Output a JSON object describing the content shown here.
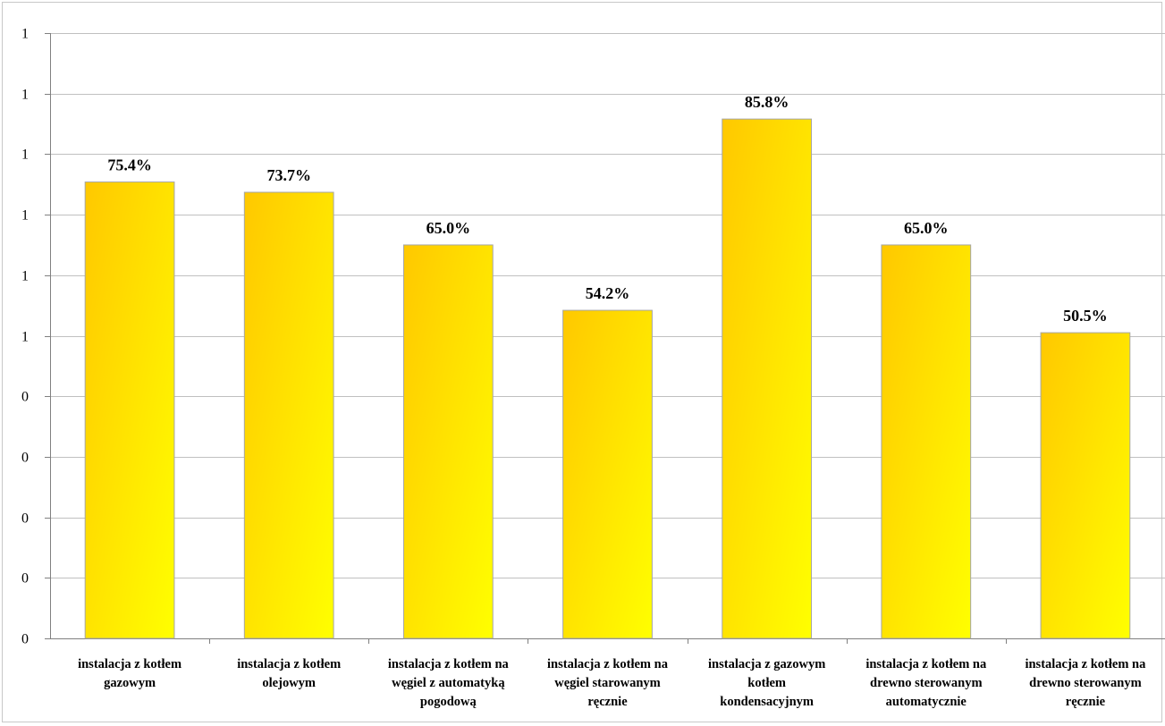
{
  "chart_data": {
    "type": "bar",
    "title": "",
    "xlabel": "",
    "ylabel": "",
    "categories": [
      [
        "instalacja z kotłem",
        "gazowym"
      ],
      [
        "instalacja z kotłem",
        "olejowym"
      ],
      [
        "instalacja z kotłem na",
        "węgiel z automatyką",
        "pogodową"
      ],
      [
        "instalacja z kotłem na",
        "węgiel starowanym",
        "ręcznie"
      ],
      [
        "instalacja z gazowym",
        "kotłem",
        "kondensacyjnym"
      ],
      [
        "instalacja z kotłem na",
        "drewno sterowanym",
        "automatycznie"
      ],
      [
        "instalacja z kotłem na",
        "drewno sterowanym",
        "ręcznie"
      ]
    ],
    "values": [
      0.754,
      0.737,
      0.65,
      0.542,
      0.858,
      0.65,
      0.505
    ],
    "data_labels": [
      "75.4%",
      "73.7%",
      "65.0%",
      "54.2%",
      "85.8%",
      "65.0%",
      "50.5%"
    ],
    "ylim": [
      0,
      1.0
    ],
    "y_ticks": [
      0,
      0.1,
      0.2,
      0.3,
      0.4,
      0.5,
      0.6,
      0.7,
      0.8,
      0.9,
      1.0
    ],
    "y_tick_labels": [
      "0",
      "0",
      "0",
      "0",
      "0",
      "1",
      "1",
      "1",
      "1",
      "1",
      "1"
    ],
    "grid": true,
    "legend": "none",
    "colors": {
      "bar_light": "#ffff00",
      "bar_dark": "#ffcc00",
      "bar_border": "#a6a6a6",
      "grid": "#c0c0c0",
      "axis": "#808080"
    }
  }
}
